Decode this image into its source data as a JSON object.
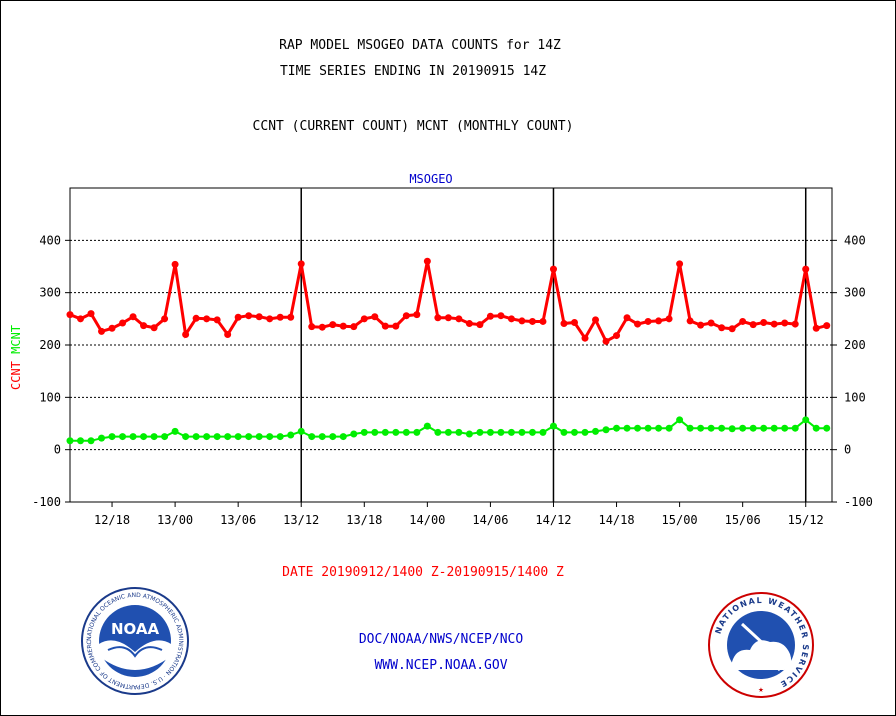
{
  "header": {
    "title_line1": "RAP MODEL MSOGEO DATA COUNTS for 14Z",
    "title_line2": "TIME SERIES ENDING IN 20190915 14Z",
    "subtitle": "CCNT (CURRENT COUNT) MCNT (MONTHLY COUNT)"
  },
  "footer": {
    "date_range": "DATE 20190912/1400 Z-20190915/1400 Z",
    "org_line": "DOC/NOAA/NWS/NCEP/NCO",
    "url": "WWW.NCEP.NOAA.GOV"
  },
  "logos": {
    "noaa_text": "NOAA",
    "noaa_ring_text": "NATIONAL OCEANIC AND ATMOSPHERIC ADMINISTRATION · U.S. DEPARTMENT OF COMMERCE",
    "nws_ring_text": "NATIONAL WEATHER SERVICE"
  },
  "colors": {
    "ccnt": "#ff0000",
    "mcnt": "#00ee00",
    "panel_title": "#0000cc",
    "footer_blue": "#0000cc",
    "footer_red": "#ff0000"
  },
  "chart_data": {
    "type": "line",
    "title": "MSOGEO",
    "ylabel_left_parts": [
      {
        "text": "CCNT",
        "color": "#ff0000"
      },
      {
        "text": "MCNT",
        "color": "#00ee00"
      }
    ],
    "ylim": [
      -100,
      500
    ],
    "yticks": [
      -100,
      0,
      100,
      200,
      300,
      400
    ],
    "x_tick_labels": [
      "12/18",
      "13/00",
      "13/06",
      "13/12",
      "13/18",
      "14/00",
      "14/06",
      "14/12",
      "14/18",
      "15/00",
      "15/06",
      "15/12"
    ],
    "x_tick_hours": [
      4,
      10,
      16,
      22,
      28,
      34,
      40,
      46,
      52,
      58,
      64,
      70
    ],
    "x_range_hours": [
      0,
      72.5
    ],
    "x_hours_note": "hours after 20190912/1400 Z",
    "vertical_markers_hours": [
      22,
      46,
      70
    ],
    "grid": "horizontal dotted",
    "series": [
      {
        "name": "CCNT",
        "color": "#ff0000",
        "x": [
          0,
          1,
          2,
          3,
          4,
          5,
          6,
          7,
          8,
          9,
          10,
          11,
          12,
          13,
          14,
          15,
          16,
          17,
          18,
          19,
          20,
          21,
          22,
          23,
          24,
          25,
          26,
          27,
          28,
          29,
          30,
          31,
          32,
          33,
          34,
          35,
          36,
          37,
          38,
          39,
          40,
          41,
          42,
          43,
          44,
          45,
          46,
          47,
          48,
          49,
          50,
          51,
          52,
          53,
          54,
          55,
          56,
          57,
          58,
          59,
          60,
          61,
          62,
          63,
          64,
          65,
          66,
          67,
          68,
          69,
          70,
          71,
          72
        ],
        "values": [
          258,
          250,
          260,
          226,
          232,
          242,
          254,
          237,
          233,
          250,
          354,
          220,
          251,
          250,
          248,
          220,
          253,
          256,
          254,
          250,
          253,
          253,
          355,
          235,
          234,
          239,
          236,
          235,
          250,
          254,
          236,
          236,
          256,
          258,
          360,
          252,
          252,
          250,
          241,
          239,
          255,
          256,
          250,
          246,
          245,
          245,
          345,
          241,
          243,
          213,
          248,
          207,
          218,
          252,
          240,
          245,
          246,
          250,
          355,
          246,
          238,
          242,
          233,
          231,
          245,
          239,
          243,
          240,
          242,
          240,
          345,
          232,
          237
        ]
      },
      {
        "name": "MCNT",
        "color": "#00ee00",
        "x": [
          0,
          1,
          2,
          3,
          4,
          5,
          6,
          7,
          8,
          9,
          10,
          11,
          12,
          13,
          14,
          15,
          16,
          17,
          18,
          19,
          20,
          21,
          22,
          23,
          24,
          25,
          26,
          27,
          28,
          29,
          30,
          31,
          32,
          33,
          34,
          35,
          36,
          37,
          38,
          39,
          40,
          41,
          42,
          43,
          44,
          45,
          46,
          47,
          48,
          49,
          50,
          51,
          52,
          53,
          54,
          55,
          56,
          57,
          58,
          59,
          60,
          61,
          62,
          63,
          64,
          65,
          66,
          67,
          68,
          69,
          70,
          71,
          72
        ],
        "values": [
          17,
          17,
          17,
          22,
          25,
          25,
          25,
          25,
          25,
          25,
          35,
          25,
          25,
          25,
          25,
          25,
          25,
          25,
          25,
          25,
          25,
          28,
          35,
          25,
          25,
          25,
          25,
          30,
          33,
          33,
          33,
          33,
          33,
          33,
          45,
          33,
          33,
          33,
          30,
          33,
          33,
          33,
          33,
          33,
          33,
          33,
          45,
          33,
          33,
          33,
          35,
          38,
          41,
          41,
          41,
          41,
          41,
          41,
          57,
          41,
          41,
          41,
          41,
          40,
          41,
          41,
          41,
          41,
          41,
          41,
          57,
          41,
          41
        ]
      }
    ]
  }
}
